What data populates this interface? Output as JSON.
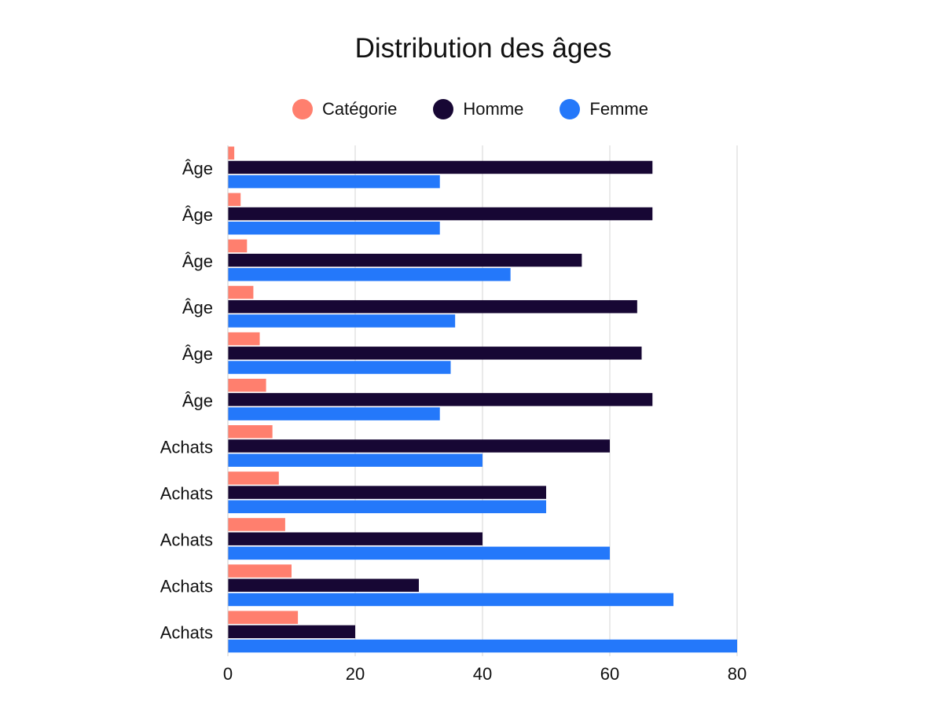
{
  "chart_data": {
    "type": "bar",
    "orientation": "horizontal",
    "title": "Distribution des âges",
    "xlabel": "",
    "ylabel": "",
    "xlim": [
      0,
      80
    ],
    "xticks": [
      0,
      20,
      40,
      60,
      80
    ],
    "grid": true,
    "legend_position": "top",
    "categories": [
      "Âge",
      "Âge",
      "Âge",
      "Âge",
      "Âge",
      "Âge",
      "Achats",
      "Achats",
      "Achats",
      "Achats",
      "Achats"
    ],
    "series": [
      {
        "name": "Catégorie",
        "color": "#FF7F6E",
        "values": [
          1,
          2,
          3,
          4,
          5,
          6,
          7,
          8,
          9,
          10,
          11
        ]
      },
      {
        "name": "Homme",
        "color": "#170734",
        "values": [
          66.7,
          66.7,
          55.6,
          64.3,
          65,
          66.7,
          60,
          50,
          40,
          30,
          20
        ]
      },
      {
        "name": "Femme",
        "color": "#2478FA",
        "values": [
          33.3,
          33.3,
          44.4,
          35.7,
          35,
          33.3,
          40,
          50,
          60,
          70,
          80
        ]
      }
    ]
  }
}
